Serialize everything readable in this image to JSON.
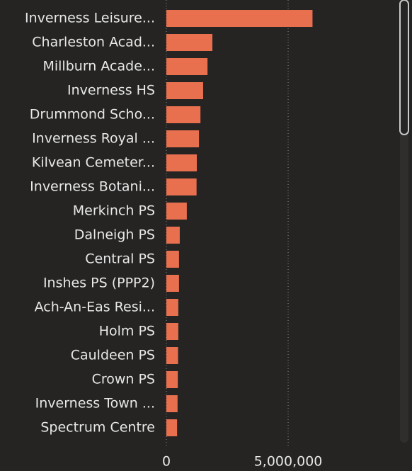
{
  "chart_data": {
    "type": "hbar",
    "categories": [
      "Inverness Leisure...",
      "Charleston Acad...",
      "Millburn Acade...",
      "Inverness HS",
      "Drummond Scho...",
      "Inverness Royal ...",
      "Kilvean Cemeter...",
      "Inverness Botani...",
      "Merkinch PS",
      "Dalneigh PS",
      "Central PS",
      "Inshes PS (PPP2)",
      "Ach-An-Eas Resi...",
      "Holm PS",
      "Cauldeen PS",
      "Crown PS",
      "Inverness Town ...",
      "Spectrum Centre"
    ],
    "values": [
      6000000,
      1890000,
      1690000,
      1510000,
      1400000,
      1340000,
      1250000,
      1240000,
      840000,
      550000,
      520000,
      520000,
      490000,
      490000,
      480000,
      470000,
      460000,
      440000
    ],
    "color": "#e8704f",
    "xlim": [
      0,
      9300000
    ],
    "xticks": [
      0,
      {
        "value": 5000000,
        "label": "5,000,000"
      }
    ],
    "grid": true
  }
}
